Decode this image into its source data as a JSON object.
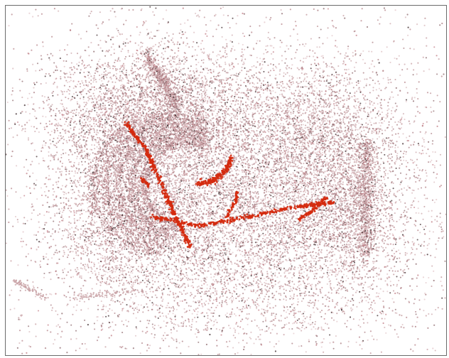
{
  "view": {
    "background": "#ffffff",
    "frame_color": "#6b6b6b"
  },
  "point_cloud": {
    "palette": [
      "#b98a8f",
      "#c9a2a6",
      "#a97b80",
      "#d8b9bc",
      "#8e6a6e",
      "#3a2528",
      "#e3c6c9",
      "#c27c84"
    ],
    "highlight_color": "#d42a0e"
  }
}
